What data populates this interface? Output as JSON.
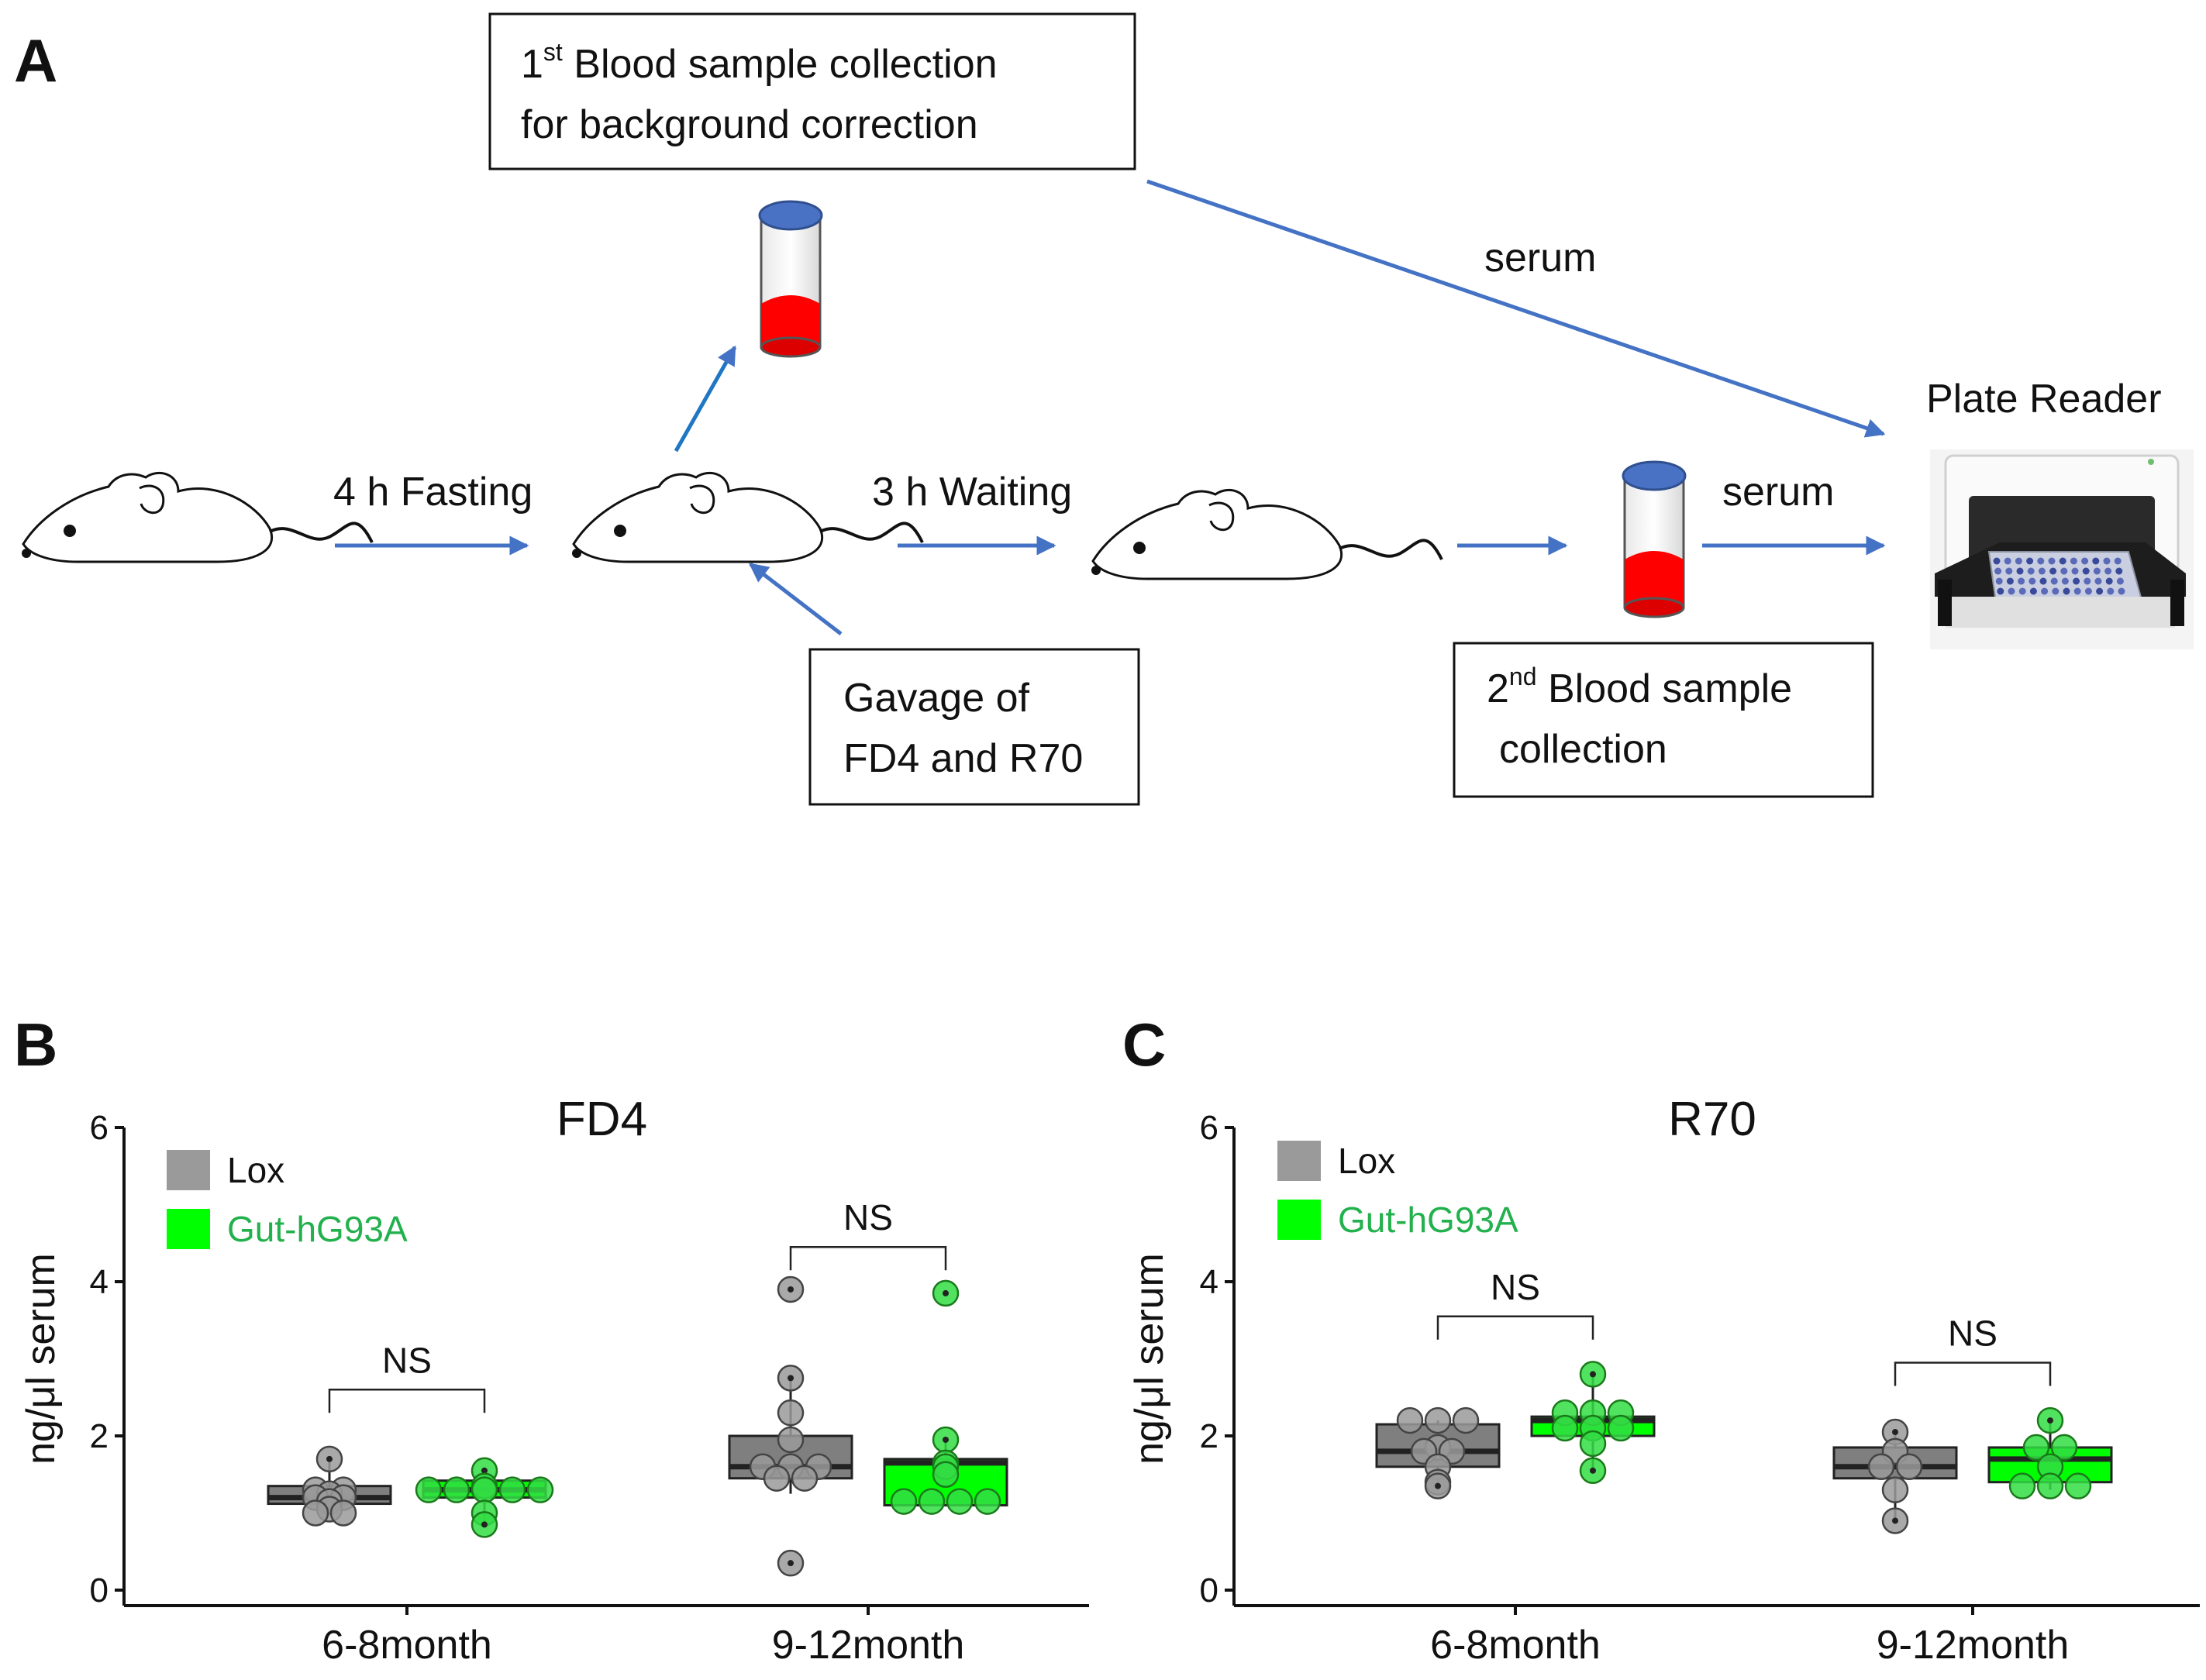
{
  "panel_a": {
    "panel_label": "A",
    "box1": {
      "sup": "st",
      "line1_lead": "1",
      "line1_rest": " Blood sample collection",
      "line2": "for background correction"
    },
    "step1_label": "4 h Fasting",
    "step2_label": "3 h Waiting",
    "serum_top_label": "serum",
    "serum_right_label": "serum",
    "plate_reader_label": "Plate Reader",
    "box_gavage": {
      "line1": "Gavage of",
      "line2": "FD4 and R70"
    },
    "box2": {
      "sup": "nd",
      "line1_lead": "2",
      "line1_rest": " Blood sample",
      "line2": "collection"
    },
    "colors": {
      "arrow": "#4472c4",
      "blood": "#ff0000",
      "cap": "#4a72c4"
    }
  },
  "chart_data": [
    {
      "panel_label": "B",
      "type": "box",
      "title": "FD4",
      "ylabel": "ng/μl serum",
      "ylim": [
        0,
        6
      ],
      "yticks": [
        "0",
        "2",
        "4",
        "6"
      ],
      "categories": [
        "6-8month",
        "9-12month"
      ],
      "legend": [
        "Lox",
        "Gut-hG93A"
      ],
      "series": [
        {
          "name": "Lox",
          "color": "#7f7f7f",
          "boxes": [
            {
              "q1": 1.12,
              "median": 1.2,
              "q3": 1.35,
              "whisker_low": 1.0,
              "whisker_high": 1.7,
              "points": [
                1.7,
                1.3,
                1.3,
                1.25,
                1.2,
                1.2,
                1.15,
                1.05,
                1.0,
                1.0
              ]
            },
            {
              "q1": 1.45,
              "median": 1.6,
              "q3": 2.0,
              "whisker_low": 1.25,
              "whisker_high": 2.75,
              "points": [
                3.9,
                2.75,
                2.3,
                1.95,
                1.6,
                1.6,
                1.6,
                1.45,
                1.45,
                0.35
              ]
            }
          ]
        },
        {
          "name": "Gut-hG93A",
          "color": "#00ff00",
          "boxes": [
            {
              "q1": 1.2,
              "median": 1.3,
              "q3": 1.42,
              "whisker_low": 0.85,
              "whisker_high": 1.55,
              "points": [
                1.55,
                1.35,
                1.3,
                1.3,
                1.3,
                1.3,
                1.3,
                1.0,
                0.85
              ]
            },
            {
              "q1": 1.1,
              "median": 1.65,
              "q3": 1.7,
              "whisker_low": 1.1,
              "whisker_high": 1.95,
              "points": [
                3.85,
                1.95,
                1.65,
                1.6,
                1.5,
                1.15,
                1.15,
                1.15,
                1.15
              ]
            }
          ]
        }
      ],
      "significance": [
        {
          "category": "6-8month",
          "label": "NS",
          "y": 2.6
        },
        {
          "category": "9-12month",
          "label": "NS",
          "y": 4.45
        }
      ]
    },
    {
      "panel_label": "C",
      "type": "box",
      "title": "R70",
      "ylabel": "ng/μl serum",
      "ylim": [
        0,
        6
      ],
      "yticks": [
        "0",
        "2",
        "4",
        "6"
      ],
      "categories": [
        "6-8month",
        "9-12month"
      ],
      "legend": [
        "Lox",
        "Gut-hG93A"
      ],
      "series": [
        {
          "name": "Lox",
          "color": "#7f7f7f",
          "boxes": [
            {
              "q1": 1.6,
              "median": 1.8,
              "q3": 2.15,
              "whisker_low": 1.35,
              "whisker_high": 2.2,
              "points": [
                2.2,
                2.2,
                2.2,
                1.85,
                1.8,
                1.8,
                1.6,
                1.4,
                1.35
              ]
            },
            {
              "q1": 1.45,
              "median": 1.6,
              "q3": 1.85,
              "whisker_low": 0.9,
              "whisker_high": 2.05,
              "points": [
                2.05,
                1.8,
                1.6,
                1.6,
                1.3,
                0.9
              ]
            }
          ]
        },
        {
          "name": "Gut-hG93A",
          "color": "#00ff00",
          "boxes": [
            {
              "q1": 2.0,
              "median": 2.2,
              "q3": 2.25,
              "whisker_low": 1.55,
              "whisker_high": 2.8,
              "points": [
                2.8,
                2.3,
                2.3,
                2.3,
                2.1,
                2.1,
                2.1,
                1.9,
                1.55
              ]
            },
            {
              "q1": 1.4,
              "median": 1.7,
              "q3": 1.85,
              "whisker_low": 1.3,
              "whisker_high": 2.2,
              "points": [
                2.2,
                1.85,
                1.85,
                1.6,
                1.35,
                1.35,
                1.35
              ]
            }
          ]
        }
      ],
      "significance": [
        {
          "category": "6-8month",
          "label": "NS",
          "y": 3.55
        },
        {
          "category": "9-12month",
          "label": "NS",
          "y": 2.95
        }
      ]
    }
  ]
}
